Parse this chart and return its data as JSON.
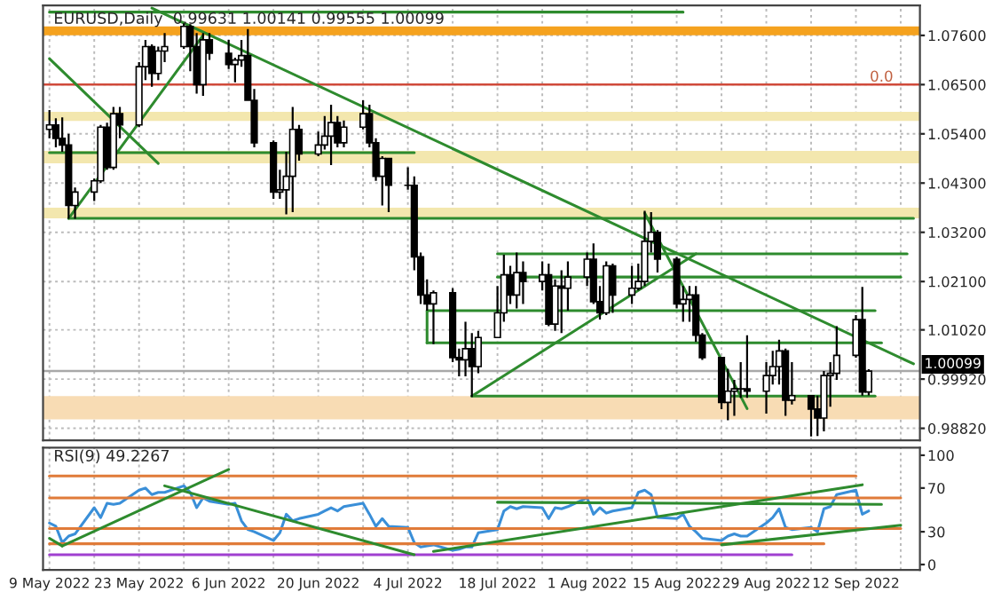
{
  "chart_data": [
    {
      "type": "candlestick",
      "title": "EURUSD,Daily  0.99631 1.00141 0.99555 1.00099",
      "x": [
        "2022-05-09",
        "2022-05-10",
        "2022-05-11",
        "2022-05-12",
        "2022-05-13",
        "2022-05-16",
        "2022-05-17",
        "2022-05-18",
        "2022-05-19",
        "2022-05-20",
        "2022-05-23",
        "2022-05-24",
        "2022-05-25",
        "2022-05-26",
        "2022-05-27",
        "2022-05-30",
        "2022-05-31",
        "2022-06-01",
        "2022-06-02",
        "2022-06-03",
        "2022-06-06",
        "2022-06-07",
        "2022-06-08",
        "2022-06-09",
        "2022-06-10",
        "2022-06-13",
        "2022-06-14",
        "2022-06-15",
        "2022-06-16",
        "2022-06-17",
        "2022-06-20",
        "2022-06-21",
        "2022-06-22",
        "2022-06-23",
        "2022-06-24",
        "2022-06-27",
        "2022-06-28",
        "2022-06-29",
        "2022-06-30",
        "2022-07-01",
        "2022-07-04",
        "2022-07-05",
        "2022-07-06",
        "2022-07-07",
        "2022-07-08",
        "2022-07-11",
        "2022-07-12",
        "2022-07-13",
        "2022-07-14",
        "2022-07-15",
        "2022-07-18",
        "2022-07-19",
        "2022-07-20",
        "2022-07-21",
        "2022-07-22",
        "2022-07-25",
        "2022-07-26",
        "2022-07-27",
        "2022-07-28",
        "2022-07-29",
        "2022-08-01",
        "2022-08-02",
        "2022-08-03",
        "2022-08-04",
        "2022-08-05",
        "2022-08-08",
        "2022-08-09",
        "2022-08-10",
        "2022-08-11",
        "2022-08-12",
        "2022-08-15",
        "2022-08-16",
        "2022-08-17",
        "2022-08-18",
        "2022-08-19",
        "2022-08-22",
        "2022-08-23",
        "2022-08-24",
        "2022-08-25",
        "2022-08-26",
        "2022-08-29",
        "2022-08-30",
        "2022-08-31",
        "2022-09-01",
        "2022-09-02",
        "2022-09-05",
        "2022-09-06",
        "2022-09-07",
        "2022-09-08",
        "2022-09-09",
        "2022-09-12",
        "2022-09-13",
        "2022-09-14"
      ],
      "ohlc": [
        [
          1.055,
          1.0593,
          1.053,
          1.056
        ],
        [
          1.056,
          1.0575,
          1.051,
          1.053
        ],
        [
          1.053,
          1.0577,
          1.05,
          1.0515
        ],
        [
          1.0515,
          1.054,
          1.035,
          1.038
        ],
        [
          1.038,
          1.042,
          1.035,
          1.041
        ],
        [
          1.041,
          1.044,
          1.039,
          1.0435
        ],
        [
          1.0435,
          1.056,
          1.043,
          1.0555
        ],
        [
          1.0555,
          1.0565,
          1.046,
          1.0465
        ],
        [
          1.0465,
          1.06,
          1.046,
          1.0585
        ],
        [
          1.0585,
          1.06,
          1.053,
          1.056
        ],
        [
          1.056,
          1.07,
          1.0555,
          1.069
        ],
        [
          1.069,
          1.075,
          1.066,
          1.0735
        ],
        [
          1.0735,
          1.074,
          1.0645,
          1.0675
        ],
        [
          1.0675,
          1.0735,
          1.066,
          1.0725
        ],
        [
          1.0725,
          1.0765,
          1.07,
          1.0735
        ],
        [
          1.0735,
          1.0787,
          1.073,
          1.078
        ],
        [
          1.078,
          1.0785,
          1.068,
          1.0735
        ],
        [
          1.0735,
          1.0765,
          1.063,
          1.065
        ],
        [
          1.065,
          1.0765,
          1.0625,
          1.075
        ],
        [
          1.075,
          1.0765,
          1.0705,
          1.072
        ],
        [
          1.072,
          1.075,
          1.0685,
          1.0695
        ],
        [
          1.0695,
          1.071,
          1.0655,
          1.0705
        ],
        [
          1.0705,
          1.075,
          1.069,
          1.0715
        ],
        [
          1.0715,
          1.0774,
          1.0615,
          1.0615
        ],
        [
          1.0615,
          1.064,
          1.051,
          1.052
        ],
        [
          1.052,
          1.0525,
          1.0395,
          1.041
        ],
        [
          1.041,
          1.046,
          1.0395,
          1.0415
        ],
        [
          1.0415,
          1.05,
          1.036,
          1.0445
        ],
        [
          1.0445,
          1.06,
          1.0365,
          1.055
        ],
        [
          1.055,
          1.056,
          1.048,
          1.0495
        ],
        [
          1.0495,
          1.0545,
          1.049,
          1.0515
        ],
        [
          1.0515,
          1.058,
          1.0505,
          1.0535
        ],
        [
          1.0535,
          1.0605,
          1.047,
          1.0565
        ],
        [
          1.0565,
          1.058,
          1.051,
          1.052
        ],
        [
          1.052,
          1.057,
          1.051,
          1.0555
        ],
        [
          1.0555,
          1.0615,
          1.055,
          1.0585
        ],
        [
          1.0585,
          1.0605,
          1.051,
          1.052
        ],
        [
          1.052,
          1.053,
          1.0435,
          1.0445
        ],
        [
          1.0445,
          1.049,
          1.038,
          1.0485
        ],
        [
          1.0485,
          1.0485,
          1.0365,
          1.0425
        ],
        [
          1.0425,
          1.0465,
          1.0415,
          1.0425
        ],
        [
          1.0425,
          1.0445,
          1.0235,
          1.0265
        ],
        [
          1.0265,
          1.0275,
          1.016,
          1.018
        ],
        [
          1.018,
          1.0215,
          1.0145,
          1.016
        ],
        [
          1.016,
          1.019,
          1.007,
          1.0185
        ],
        [
          1.0185,
          1.0195,
          1.003,
          1.004
        ],
        [
          1.004,
          1.006,
          0.9998,
          1.0035
        ],
        [
          1.0035,
          1.012,
          0.9998,
          1.006
        ],
        [
          1.006,
          1.0095,
          0.9952,
          1.002
        ],
        [
          1.002,
          1.01,
          1.0005,
          1.0085
        ],
        [
          1.0085,
          1.02,
          1.0085,
          1.014
        ],
        [
          1.014,
          1.027,
          1.012,
          1.0225
        ],
        [
          1.0225,
          1.0245,
          1.016,
          1.018
        ],
        [
          1.018,
          1.0275,
          1.015,
          1.023
        ],
        [
          1.023,
          1.0255,
          1.016,
          1.021
        ],
        [
          1.021,
          1.0255,
          1.019,
          1.0225
        ],
        [
          1.0225,
          1.025,
          1.011,
          1.0115
        ],
        [
          1.0115,
          1.0215,
          1.01,
          1.02
        ],
        [
          1.02,
          1.0235,
          1.0095,
          1.0195
        ],
        [
          1.0195,
          1.0255,
          1.0145,
          1.022
        ],
        [
          1.022,
          1.0275,
          1.02,
          1.026
        ],
        [
          1.026,
          1.0295,
          1.016,
          1.0165
        ],
        [
          1.0165,
          1.02,
          1.0125,
          1.014
        ],
        [
          1.014,
          1.0255,
          1.0135,
          1.0245
        ],
        [
          1.0245,
          1.025,
          1.014,
          1.018
        ],
        [
          1.018,
          1.0245,
          1.016,
          1.0195
        ],
        [
          1.0195,
          1.025,
          1.019,
          1.021
        ],
        [
          1.021,
          1.0368,
          1.02,
          1.03
        ],
        [
          1.03,
          1.0365,
          1.0275,
          1.032
        ],
        [
          1.032,
          1.0325,
          1.023,
          1.026
        ],
        [
          1.026,
          1.0265,
          1.015,
          1.016
        ],
        [
          1.016,
          1.02,
          1.012,
          1.017
        ],
        [
          1.017,
          1.02,
          1.012,
          1.018
        ],
        [
          1.018,
          1.02,
          1.0075,
          1.009
        ],
        [
          1.009,
          1.0095,
          1.0035,
          1.004
        ],
        [
          1.004,
          1.004,
          0.9925,
          0.994
        ],
        [
          0.994,
          1.0015,
          0.99,
          0.9965
        ],
        [
          0.9965,
          0.999,
          0.991,
          0.997
        ],
        [
          0.997,
          1.003,
          0.995,
          0.997
        ],
        [
          0.997,
          1.009,
          0.995,
          0.9965
        ],
        [
          0.9965,
          1.003,
          0.9915,
          1.0
        ],
        [
          1.0,
          1.0055,
          0.998,
          1.002
        ],
        [
          1.002,
          1.008,
          0.998,
          1.0055
        ],
        [
          1.0055,
          1.006,
          0.991,
          0.9945
        ],
        [
          0.9945,
          1.003,
          0.9935,
          0.9955
        ],
        [
          0.9955,
          0.9955,
          0.9864,
          0.9925
        ],
        [
          0.9925,
          0.9955,
          0.9865,
          0.9905
        ],
        [
          0.9905,
          1.001,
          0.9875,
          1.0
        ],
        [
          1.0,
          1.003,
          0.993,
          1.0005
        ],
        [
          1.0005,
          1.011,
          0.999,
          1.0045
        ],
        [
          1.0045,
          1.0135,
          1.004,
          1.0125
        ],
        [
          1.0125,
          1.0198,
          0.9955,
          0.99631
        ],
        [
          0.99631,
          1.00141,
          0.99555,
          1.00099
        ]
      ],
      "color": "#000000",
      "series": [
        {
          "type": "line",
          "color": "#2e8b2e",
          "x": [
            "2022-05-09",
            "2022-08-16"
          ],
          "values": [
            1.0812,
            1.0812
          ]
        },
        {
          "type": "line",
          "color": "#2e8b2e",
          "x": [
            "2022-05-25",
            "2022-09-21"
          ],
          "values": [
            1.0821,
            1.0026
          ]
        },
        {
          "type": "line",
          "color": "#2e8b2e",
          "x": [
            "2022-05-12",
            "2022-06-02"
          ],
          "values": [
            1.0351,
            1.076
          ]
        },
        {
          "type": "line",
          "color": "#2e8b2e",
          "x": [
            "2022-05-09",
            "2022-05-26"
          ],
          "values": [
            1.0708,
            1.0474
          ]
        },
        {
          "type": "line",
          "color": "#2e8b2e",
          "x": [
            "2022-05-09",
            "2022-07-05"
          ],
          "values": [
            1.0498,
            1.0498
          ]
        },
        {
          "type": "line",
          "color": "#2e8b2e",
          "x": [
            "2022-05-12",
            "2022-09-21"
          ],
          "values": [
            1.0351,
            1.0351
          ]
        },
        {
          "type": "line",
          "color": "#2e8b2e",
          "x": [
            "2022-07-18",
            "2022-09-20"
          ],
          "values": [
            1.0272,
            1.0272
          ]
        },
        {
          "type": "line",
          "color": "#2e8b2e",
          "x": [
            "2022-07-18",
            "2022-09-19"
          ],
          "values": [
            1.022,
            1.022
          ]
        },
        {
          "type": "line",
          "color": "#2e8b2e",
          "x": [
            "2022-07-07",
            "2022-09-15"
          ],
          "values": [
            1.0145,
            1.0145
          ]
        },
        {
          "type": "line",
          "color": "#2e8b2e",
          "x": [
            "2022-07-07",
            "2022-09-16"
          ],
          "values": [
            1.0073,
            1.0073
          ]
        },
        {
          "type": "line",
          "color": "#2e8b2e",
          "x": [
            "2022-07-07",
            "2022-07-07"
          ],
          "values": [
            1.0145,
            1.0073
          ]
        },
        {
          "type": "line",
          "color": "#2e8b2e",
          "x": [
            "2022-07-14",
            "2022-09-15"
          ],
          "values": [
            0.9954,
            0.9954
          ]
        },
        {
          "type": "line",
          "color": "#2e8b2e",
          "x": [
            "2022-07-14",
            "2022-08-18"
          ],
          "values": [
            0.9954,
            1.0272
          ]
        },
        {
          "type": "line",
          "color": "#2e8b2e",
          "x": [
            "2022-08-10",
            "2022-08-26"
          ],
          "values": [
            1.0363,
            0.9926
          ]
        }
      ],
      "bands": [
        {
          "axis": "y",
          "from": 1.076,
          "to": 1.078,
          "color": "#f5a21e"
        },
        {
          "axis": "y",
          "from": 1.0569,
          "to": 1.0589,
          "color": "#f3e7ae"
        },
        {
          "axis": "y",
          "from": 1.0474,
          "to": 1.0502,
          "color": "#f3e7ae"
        },
        {
          "axis": "y",
          "from": 1.0351,
          "to": 1.0375,
          "color": "#f3e7ae"
        },
        {
          "axis": "y",
          "from": 0.9902,
          "to": 0.9954,
          "color": "#f8dcb4"
        }
      ],
      "annotations": [
        {
          "text": "0.0",
          "x": "2022-09-16",
          "y": 1.065
        }
      ],
      "ref_lines": [
        {
          "axis": "y",
          "value": 1.065,
          "color": "#d04a3a"
        },
        {
          "axis": "y",
          "value": 1.00099,
          "label": "1.00099",
          "color": "#a8a8a8"
        }
      ],
      "xlim": [
        "2022-05-08",
        "2022-09-22"
      ],
      "xticks": [
        {
          "value": "2022-05-09",
          "label": null
        },
        {
          "value": "2022-05-16",
          "label": null
        },
        {
          "value": "2022-05-23",
          "label": null
        },
        {
          "value": "2022-05-30",
          "label": null
        },
        {
          "value": "2022-06-06",
          "label": null
        },
        {
          "value": "2022-06-13",
          "label": null
        },
        {
          "value": "2022-06-20",
          "label": null
        },
        {
          "value": "2022-06-27",
          "label": null
        },
        {
          "value": "2022-07-04",
          "label": null
        },
        {
          "value": "2022-07-11",
          "label": null
        },
        {
          "value": "2022-07-18",
          "label": null
        },
        {
          "value": "2022-07-25",
          "label": null
        },
        {
          "value": "2022-08-01",
          "label": null
        },
        {
          "value": "2022-08-08",
          "label": null
        },
        {
          "value": "2022-08-15",
          "label": null
        },
        {
          "value": "2022-08-22",
          "label": null
        },
        {
          "value": "2022-08-29",
          "label": null
        },
        {
          "value": "2022-09-05",
          "label": null
        },
        {
          "value": "2022-09-12",
          "label": null
        },
        {
          "value": "2022-09-19",
          "label": null
        }
      ],
      "ylim": [
        0.9855,
        1.0827
      ],
      "yticks": [
        {
          "value": 0.9882,
          "label": "0.98820"
        },
        {
          "value": 0.9992,
          "label": "0.99920"
        },
        {
          "value": 1.0102,
          "label": "1.01020"
        },
        {
          "value": 1.021,
          "label": "1.02100"
        },
        {
          "value": 1.032,
          "label": "1.03200"
        },
        {
          "value": 1.043,
          "label": "1.04300"
        },
        {
          "value": 1.054,
          "label": "1.05400"
        },
        {
          "value": 1.065,
          "label": "1.06500"
        },
        {
          "value": 1.076,
          "label": "1.07600"
        }
      ],
      "grid": true,
      "tick_labels": "y"
    },
    {
      "type": "line",
      "title": "RSI(9) 49.2267",
      "x": [
        "2022-05-09",
        "2022-05-10",
        "2022-05-11",
        "2022-05-12",
        "2022-05-13",
        "2022-05-16",
        "2022-05-17",
        "2022-05-18",
        "2022-05-19",
        "2022-05-20",
        "2022-05-23",
        "2022-05-24",
        "2022-05-25",
        "2022-05-26",
        "2022-05-27",
        "2022-05-30",
        "2022-05-31",
        "2022-06-01",
        "2022-06-02",
        "2022-06-03",
        "2022-06-06",
        "2022-06-07",
        "2022-06-08",
        "2022-06-09",
        "2022-06-10",
        "2022-06-13",
        "2022-06-14",
        "2022-06-15",
        "2022-06-16",
        "2022-06-17",
        "2022-06-20",
        "2022-06-21",
        "2022-06-22",
        "2022-06-23",
        "2022-06-24",
        "2022-06-27",
        "2022-06-28",
        "2022-06-29",
        "2022-06-30",
        "2022-07-01",
        "2022-07-04",
        "2022-07-05",
        "2022-07-06",
        "2022-07-07",
        "2022-07-08",
        "2022-07-11",
        "2022-07-12",
        "2022-07-13",
        "2022-07-14",
        "2022-07-15",
        "2022-07-18",
        "2022-07-19",
        "2022-07-20",
        "2022-07-21",
        "2022-07-22",
        "2022-07-25",
        "2022-07-26",
        "2022-07-27",
        "2022-07-28",
        "2022-07-29",
        "2022-08-01",
        "2022-08-02",
        "2022-08-03",
        "2022-08-04",
        "2022-08-05",
        "2022-08-08",
        "2022-08-09",
        "2022-08-10",
        "2022-08-11",
        "2022-08-12",
        "2022-08-15",
        "2022-08-16",
        "2022-08-17",
        "2022-08-18",
        "2022-08-19",
        "2022-08-22",
        "2022-08-23",
        "2022-08-24",
        "2022-08-25",
        "2022-08-26",
        "2022-08-29",
        "2022-08-30",
        "2022-08-31",
        "2022-09-01",
        "2022-09-02",
        "2022-09-05",
        "2022-09-06",
        "2022-09-07",
        "2022-09-08",
        "2022-09-09",
        "2022-09-12",
        "2022-09-13",
        "2022-09-14"
      ],
      "series": [
        {
          "color": "#3a8fd8",
          "values": [
            38,
            35,
            20,
            26,
            28,
            52,
            43,
            56,
            55,
            56,
            68,
            70,
            64,
            66,
            66,
            72,
            66,
            52,
            61,
            58,
            55,
            56,
            40,
            32,
            30,
            22,
            29,
            46,
            40,
            42,
            46,
            49,
            52,
            49,
            53,
            56,
            46,
            35,
            42,
            35,
            34,
            20,
            16,
            17,
            18,
            13,
            14,
            16,
            16,
            29,
            32,
            49,
            53,
            51,
            53,
            52,
            42,
            52,
            51,
            53,
            61,
            46,
            52,
            47,
            49,
            52,
            66,
            68,
            64,
            43,
            42,
            46,
            35,
            30,
            24,
            22,
            26,
            28,
            26,
            26,
            38,
            43,
            51,
            34,
            32,
            34,
            30,
            51,
            53,
            64,
            68,
            46,
            49
          ]
        },
        {
          "type": "line",
          "color": "#e07b39",
          "x": [
            "2022-05-09",
            "2022-09-12"
          ],
          "values": [
            81,
            81
          ]
        },
        {
          "type": "line",
          "color": "#e07b39",
          "x": [
            "2022-05-09",
            "2022-09-19"
          ],
          "values": [
            61,
            61
          ]
        },
        {
          "type": "line",
          "color": "#e07b39",
          "x": [
            "2022-05-09",
            "2022-09-19"
          ],
          "values": [
            33,
            33
          ]
        },
        {
          "type": "line",
          "color": "#e07b39",
          "x": [
            "2022-05-09",
            "2022-09-07"
          ],
          "values": [
            19,
            19
          ]
        },
        {
          "type": "line",
          "color": "#a040d0",
          "x": [
            "2022-05-09",
            "2022-09-02"
          ],
          "values": [
            9,
            9
          ]
        },
        {
          "type": "line",
          "color": "#2e8b2e",
          "x": [
            "2022-05-09",
            "2022-05-11"
          ],
          "values": [
            24,
            17
          ]
        },
        {
          "type": "line",
          "color": "#2e8b2e",
          "x": [
            "2022-05-11",
            "2022-06-06"
          ],
          "values": [
            17,
            87
          ]
        },
        {
          "type": "line",
          "color": "#2e8b2e",
          "x": [
            "2022-05-27",
            "2022-07-05"
          ],
          "values": [
            72,
            9
          ]
        },
        {
          "type": "line",
          "color": "#2e8b2e",
          "x": [
            "2022-07-08",
            "2022-09-13"
          ],
          "values": [
            12,
            73
          ]
        },
        {
          "type": "line",
          "color": "#2e8b2e",
          "x": [
            "2022-07-18",
            "2022-09-16"
          ],
          "values": [
            57,
            55
          ]
        },
        {
          "type": "line",
          "color": "#2e8b2e",
          "x": [
            "2022-08-22",
            "2022-09-19"
          ],
          "values": [
            18,
            36
          ]
        }
      ],
      "xlim": [
        "2022-05-08",
        "2022-09-22"
      ],
      "xticks": [
        {
          "value": "2022-05-09",
          "label": "9 May 2022"
        },
        {
          "value": "2022-05-16",
          "label": null
        },
        {
          "value": "2022-05-23",
          "label": "23 May 2022"
        },
        {
          "value": "2022-05-30",
          "label": null
        },
        {
          "value": "2022-06-06",
          "label": "6 Jun 2022"
        },
        {
          "value": "2022-06-13",
          "label": null
        },
        {
          "value": "2022-06-20",
          "label": "20 Jun 2022"
        },
        {
          "value": "2022-06-27",
          "label": null
        },
        {
          "value": "2022-07-04",
          "label": "4 Jul 2022"
        },
        {
          "value": "2022-07-11",
          "label": null
        },
        {
          "value": "2022-07-18",
          "label": "18 Jul 2022"
        },
        {
          "value": "2022-07-25",
          "label": null
        },
        {
          "value": "2022-08-01",
          "label": "1 Aug 2022"
        },
        {
          "value": "2022-08-08",
          "label": null
        },
        {
          "value": "2022-08-15",
          "label": "15 Aug 2022"
        },
        {
          "value": "2022-08-22",
          "label": null
        },
        {
          "value": "2022-08-29",
          "label": "29 Aug 2022"
        },
        {
          "value": "2022-09-05",
          "label": null
        },
        {
          "value": "2022-09-12",
          "label": "12 Sep 2022"
        },
        {
          "value": "2022-09-19",
          "label": null
        }
      ],
      "ylim": [
        -5,
        107
      ],
      "yticks": [
        0,
        30,
        70,
        100
      ],
      "grid": "x"
    }
  ]
}
